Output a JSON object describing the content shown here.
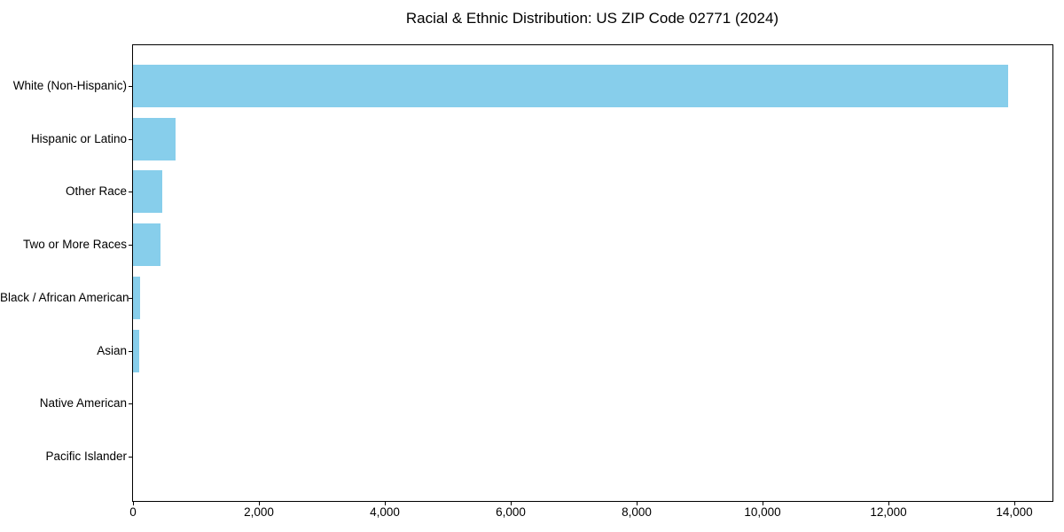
{
  "figure": {
    "title": "Racial & Ethnic Distribution: US ZIP Code 02771 (2024)"
  },
  "chart_data": {
    "type": "bar",
    "orientation": "horizontal",
    "title": "Racial & Ethnic Distribution: US ZIP Code 02771 (2024)",
    "categories": [
      "White (Non-Hispanic)",
      "Hispanic or Latino",
      "Other Race",
      "Two or More Races",
      "Black / African American",
      "Asian",
      "Native American",
      "Pacific Islander"
    ],
    "values": [
      13890,
      675,
      460,
      432,
      115,
      100,
      0,
      0
    ],
    "xlabel": "",
    "ylabel": "",
    "xlim": [
      0,
      14600
    ],
    "xticks": [
      0,
      2000,
      4000,
      6000,
      8000,
      10000,
      12000,
      14000
    ],
    "xtick_labels": [
      "0",
      "2,000",
      "4,000",
      "6,000",
      "8,000",
      "10,000",
      "12,000",
      "14,000"
    ],
    "bar_color": "#87CEEB",
    "axis_color": "#000000",
    "grid": false,
    "legend": null
  }
}
